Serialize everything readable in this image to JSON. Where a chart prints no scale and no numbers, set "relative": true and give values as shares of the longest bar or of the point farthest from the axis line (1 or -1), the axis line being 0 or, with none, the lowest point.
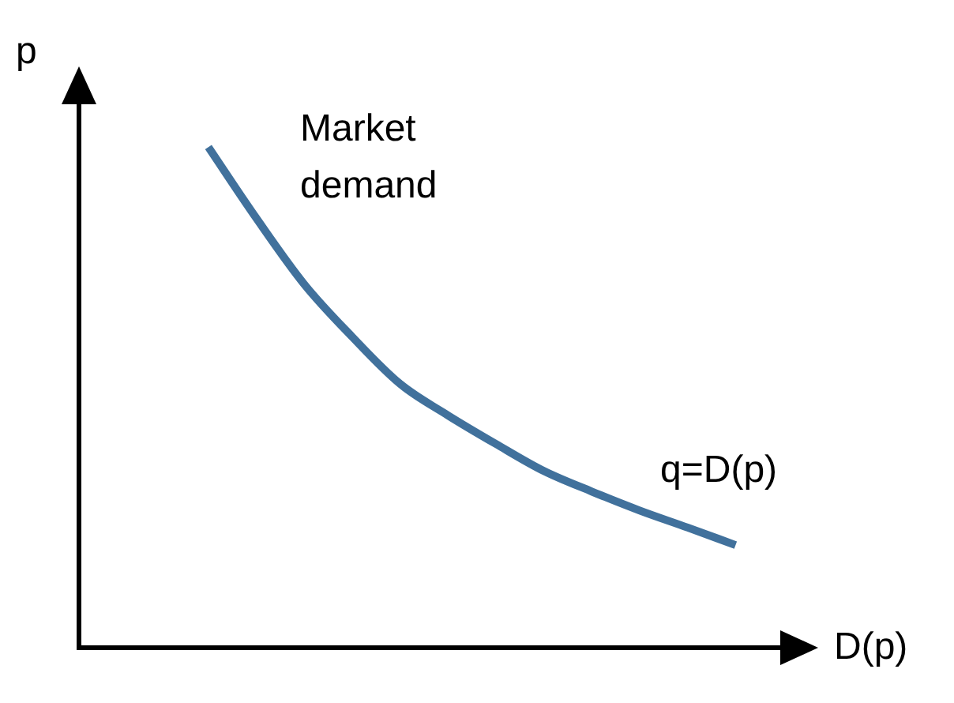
{
  "chart_data": {
    "type": "line",
    "relative": true,
    "xlabel": "D(p)",
    "ylabel": "p",
    "categories": [
      null,
      null,
      null,
      null,
      null,
      null,
      null,
      null,
      null,
      null,
      null,
      null
    ],
    "series": [
      {
        "color": "#41719c",
        "values": [
          1.0,
          0.858,
          0.726,
          0.621,
          0.527,
          0.464,
          0.407,
          0.353,
          0.312,
          0.274,
          0.24,
          0.205
        ]
      }
    ],
    "annotations": [
      "Market demand",
      "q=D(p)"
    ],
    "marker": "none",
    "legend": false,
    "grid": false
  }
}
